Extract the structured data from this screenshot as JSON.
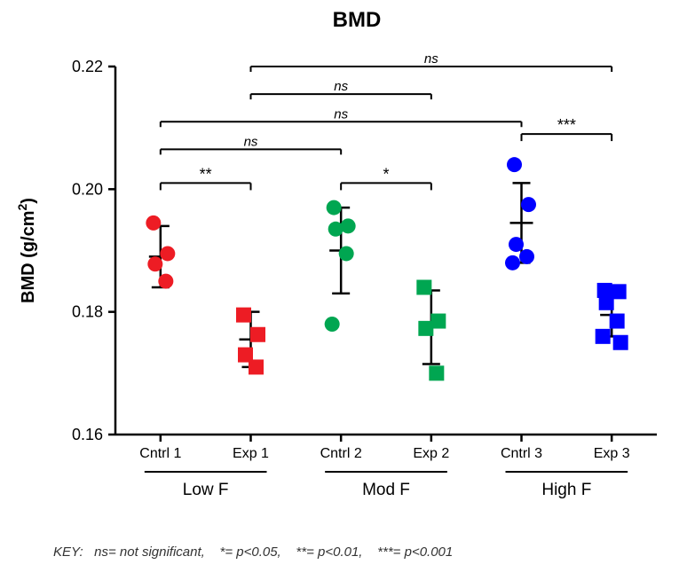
{
  "chart": {
    "type": "scatter",
    "title": "BMD",
    "title_fontsize": 24,
    "title_fontweight": "bold",
    "title_color": "#000000",
    "ylabel": "BMD (g/cm²)",
    "label_fontsize": 20,
    "label_fontweight": "bold",
    "label_color": "#000000",
    "ylim": [
      0.16,
      0.22
    ],
    "yticks": [
      0.16,
      0.18,
      0.2,
      0.22
    ],
    "ytick_labels": [
      "0.16",
      "0.18",
      "0.20",
      "0.22"
    ],
    "tick_fontsize": 18,
    "x_categories": [
      "Cntrl 1",
      "Exp 1",
      "Cntrl 2",
      "Exp 2",
      "Cntrl 3",
      "Exp 3"
    ],
    "x_tick_fontsize": 16,
    "background_color": "#ffffff",
    "axis_color": "#000000",
    "axis_width": 2.5,
    "marker_size": 8.5,
    "error_cap_width": 10,
    "error_line_width": 2.5,
    "groups": [
      {
        "label": "Cntrl 1",
        "color": "#ed1c24",
        "marker": "circle",
        "mean": 0.189,
        "sd": 0.005,
        "points": [
          0.1945,
          0.1895,
          0.1878,
          0.185
        ]
      },
      {
        "label": "Exp 1",
        "color": "#ed1c24",
        "marker": "square",
        "mean": 0.1755,
        "sd": 0.0045,
        "points": [
          0.1795,
          0.1763,
          0.173,
          0.171
        ]
      },
      {
        "label": "Cntrl 2",
        "color": "#00a651",
        "marker": "circle",
        "mean": 0.19,
        "sd": 0.007,
        "points": [
          0.197,
          0.194,
          0.1935,
          0.1895,
          0.178
        ]
      },
      {
        "label": "Exp 2",
        "color": "#00a651",
        "marker": "square",
        "mean": 0.1775,
        "sd": 0.006,
        "points": [
          0.184,
          0.1785,
          0.1773,
          0.17
        ]
      },
      {
        "label": "Cntrl 3",
        "color": "#0000ff",
        "marker": "circle",
        "mean": 0.1945,
        "sd": 0.0065,
        "points": [
          0.204,
          0.1975,
          0.191,
          0.189,
          0.188
        ]
      },
      {
        "label": "Exp 3",
        "color": "#0000ff",
        "marker": "square",
        "mean": 0.1795,
        "sd": 0.0035,
        "points": [
          0.1835,
          0.1833,
          0.1815,
          0.1785,
          0.176,
          0.175
        ]
      }
    ],
    "comparisons_lower": [
      {
        "from": 0,
        "to": 1,
        "label": "**",
        "y": 0.201
      },
      {
        "from": 2,
        "to": 3,
        "label": "*",
        "y": 0.201
      },
      {
        "from": 4,
        "to": 5,
        "label": "***",
        "y": 0.209
      }
    ],
    "comparisons_upper": [
      {
        "from": 0,
        "to": 2,
        "y": 0.2065,
        "label": "ns",
        "italic": true
      },
      {
        "from": 0,
        "to": 4,
        "y": 0.211,
        "label": "ns",
        "italic": true
      },
      {
        "from": 1,
        "to": 3,
        "y": 0.2155,
        "label": "ns",
        "italic": true
      },
      {
        "from": 1,
        "to": 5,
        "y": 0.22,
        "label": "ns",
        "italic": true
      }
    ],
    "group_brackets": [
      {
        "from": 0,
        "to": 1,
        "label": "Low F"
      },
      {
        "from": 2,
        "to": 3,
        "label": "Mod F"
      },
      {
        "from": 4,
        "to": 5,
        "label": "High F"
      }
    ],
    "group_bracket_fontsize": 19,
    "key": {
      "prefix": "KEY:",
      "items": [
        "ns= not significant,",
        "*= p<0.05,",
        "**= p<0.01,",
        "***= p<0.001"
      ],
      "fontsize": 15,
      "fontstyle": "italic",
      "color": "#333333"
    }
  }
}
